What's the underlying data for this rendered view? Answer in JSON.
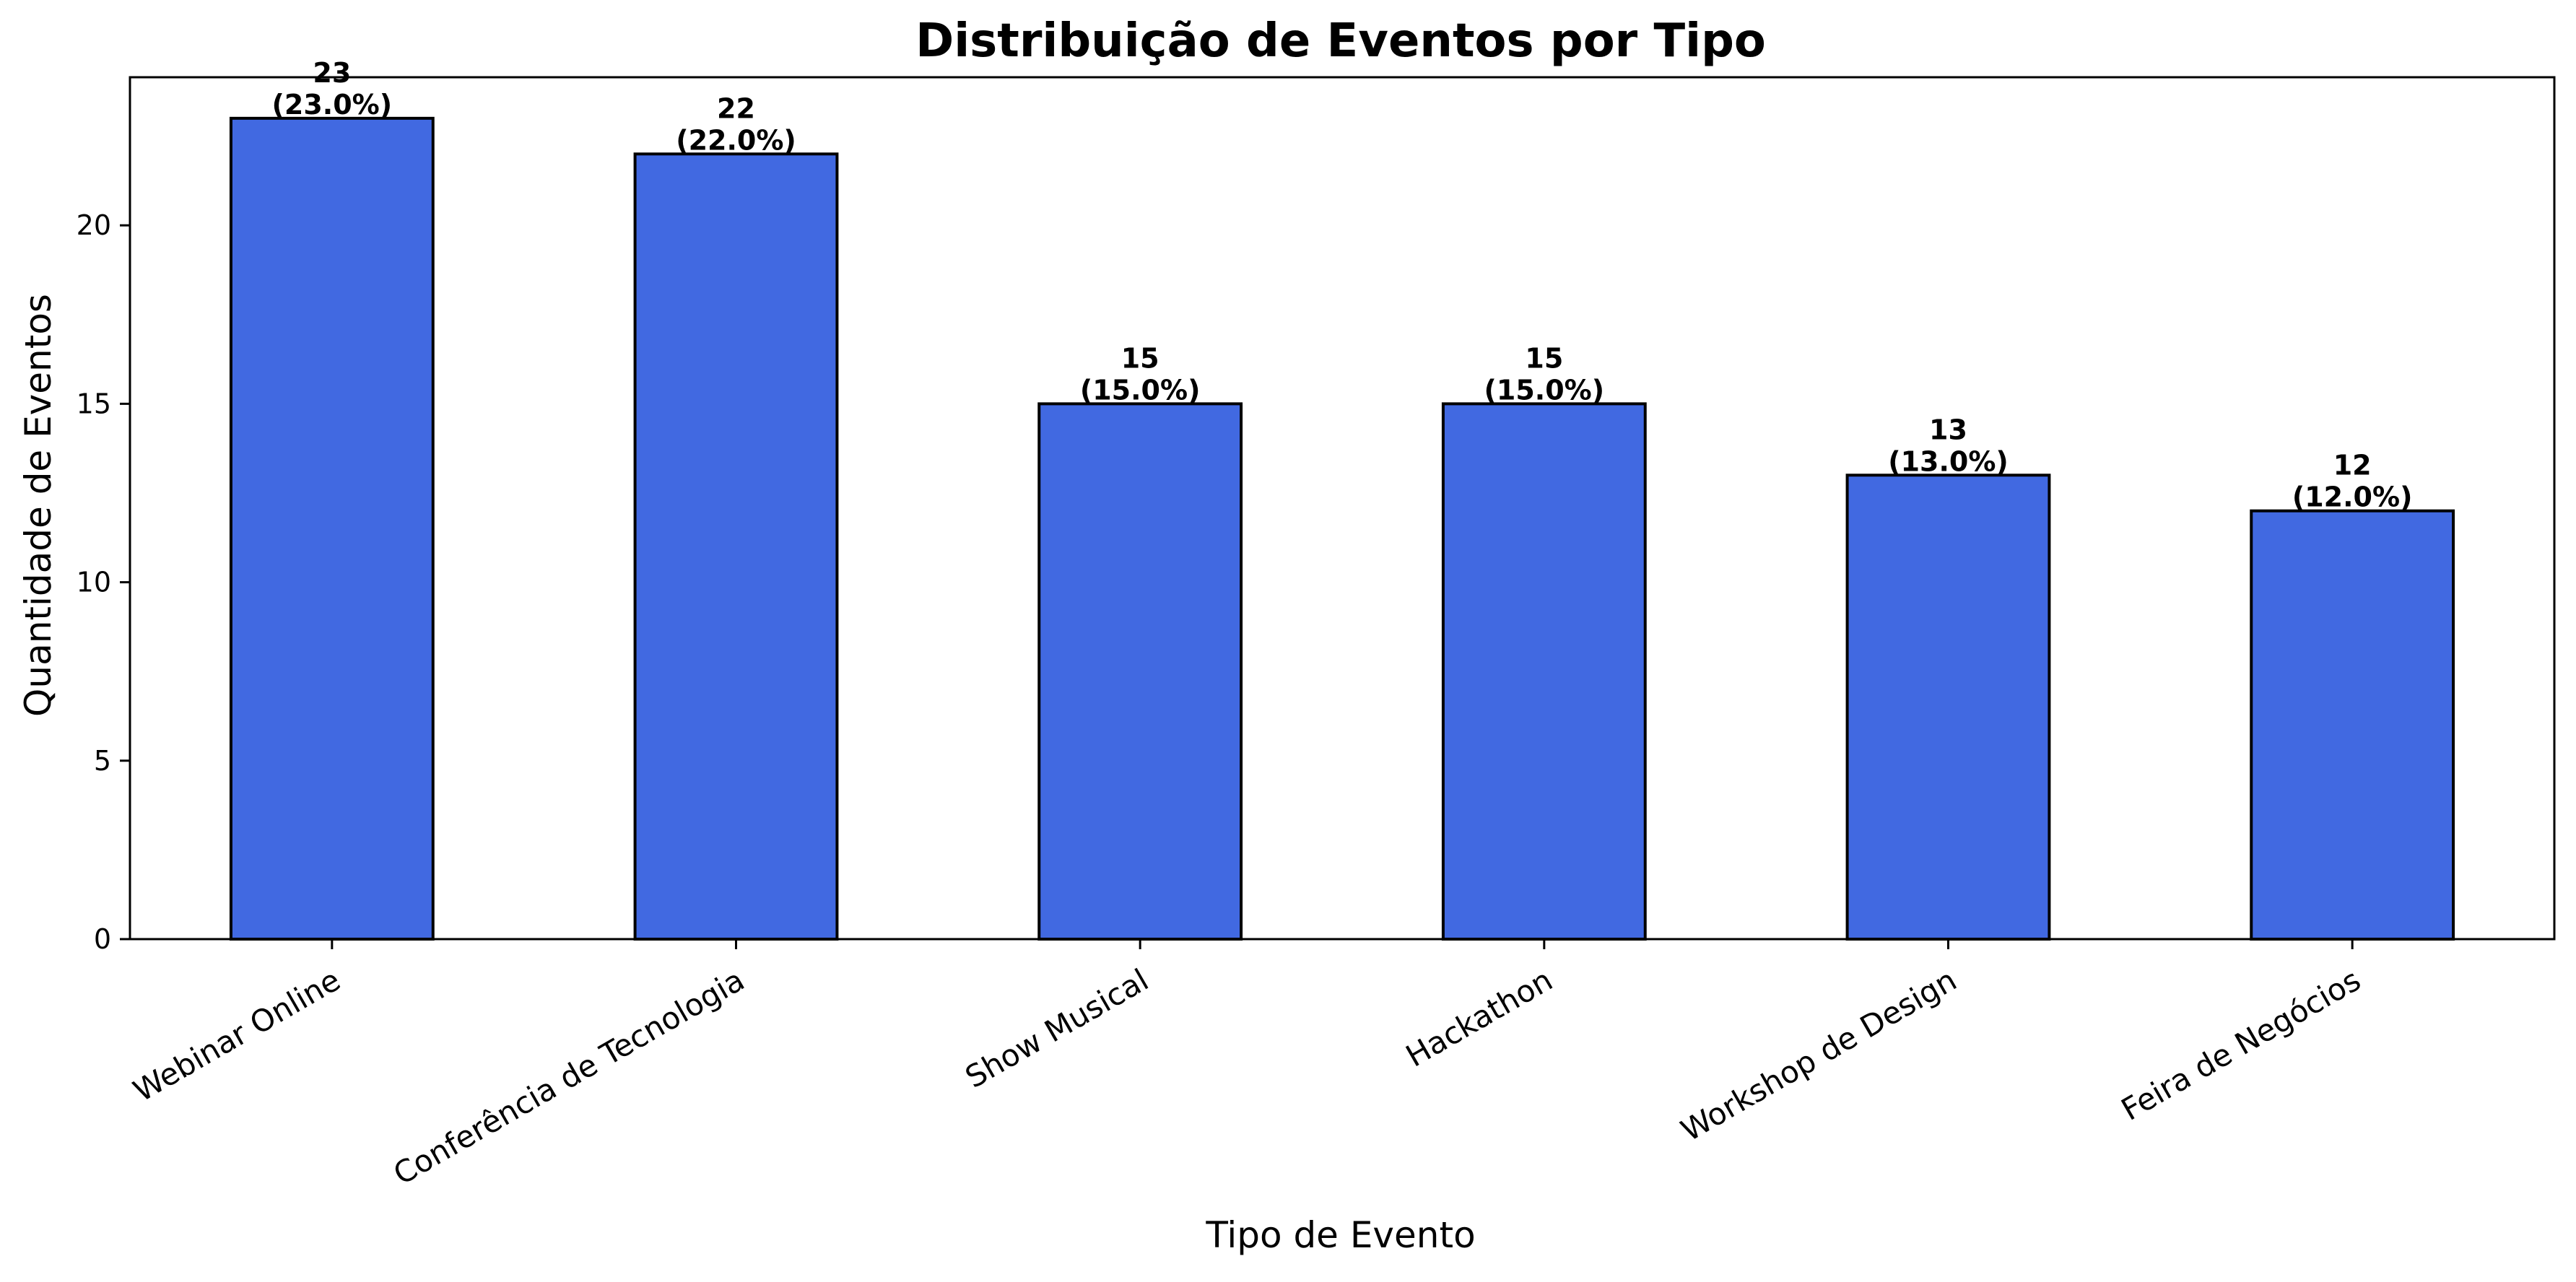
{
  "chart_data": {
    "type": "bar",
    "title": "Distribuição de Eventos por Tipo",
    "xlabel": "Tipo de Evento",
    "ylabel": "Quantidade de Eventos",
    "categories": [
      "Webinar Online",
      "Conferência de Tecnologia",
      "Show Musical",
      "Hackathon",
      "Workshop de Design",
      "Feira de Negócios"
    ],
    "values": [
      23,
      22,
      15,
      15,
      13,
      12
    ],
    "value_labels": [
      "23",
      "22",
      "15",
      "15",
      "13",
      "12"
    ],
    "percent_labels": [
      "(23.0%)",
      "(22.0%)",
      "(15.0%)",
      "(15.0%)",
      "(13.0%)",
      "(12.0%)"
    ],
    "ylim": [
      0,
      24.15
    ],
    "yticks": [
      0,
      5,
      10,
      15,
      20
    ],
    "ytick_labels": [
      "0",
      "5",
      "10",
      "15",
      "20"
    ],
    "grid": false,
    "legend": "none",
    "colors": {
      "bar_fill": "#4169E1",
      "bar_edge": "#000000"
    }
  }
}
